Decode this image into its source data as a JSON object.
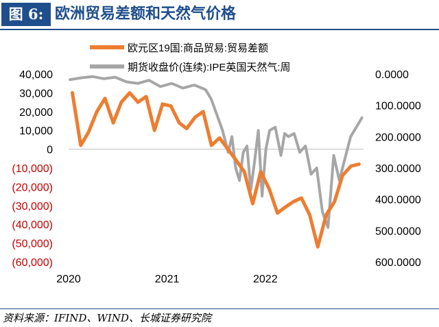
{
  "figure": {
    "label": "图 6:",
    "title": "欧洲贸易差额和天然气价格",
    "source": "资料来源：IFIND、WIND、长城证券研究院"
  },
  "colors": {
    "header": "#1f4e8c",
    "series_trade": "#ed7d31",
    "series_gas": "#a6a6a6",
    "negative_tick": "#c00000"
  },
  "chart_data": {
    "type": "line",
    "x_ticks": [
      "2020",
      "2021",
      "2022"
    ],
    "legend_position": "top",
    "grid": false,
    "y_left": {
      "ylim": [
        -60000,
        40000
      ],
      "ticks": [
        "40,000",
        "30,000",
        "20,000",
        "10,000",
        "0",
        "(10,000)",
        "(20,000)",
        "(30,000)",
        "(40,000)",
        "(50,000)",
        "(60,000)"
      ]
    },
    "y_right": {
      "ylim": [
        0,
        600
      ],
      "inverted": true,
      "ticks": [
        "0.0000",
        "100.0000",
        "200.0000",
        "300.0000",
        "400.0000",
        "500.0000",
        "600.0000"
      ]
    },
    "series": [
      {
        "name": "欧元区19国:商品贸易:贸易差额",
        "axis": "left",
        "x": [
          "2020-01",
          "2020-02",
          "2020-03",
          "2020-04",
          "2020-05",
          "2020-06",
          "2020-07",
          "2020-08",
          "2020-09",
          "2020-10",
          "2020-11",
          "2020-12",
          "2021-01",
          "2021-02",
          "2021-03",
          "2021-04",
          "2021-05",
          "2021-06",
          "2021-07",
          "2021-08",
          "2021-09",
          "2021-10",
          "2021-11",
          "2021-12",
          "2022-01",
          "2022-02",
          "2022-03",
          "2022-04",
          "2022-05",
          "2022-06",
          "2022-07",
          "2022-08",
          "2022-09",
          "2022-10",
          "2022-11",
          "2022-12"
        ],
        "values": [
          30000,
          2000,
          9000,
          20000,
          27000,
          14000,
          25000,
          30000,
          25000,
          28000,
          10000,
          24000,
          23000,
          14000,
          11000,
          17000,
          20000,
          2000,
          6000,
          0,
          -6000,
          -12000,
          -29000,
          -12000,
          -21000,
          -34000,
          -31000,
          -28000,
          -26000,
          -35000,
          -52000,
          -35000,
          -28000,
          -14000,
          -9000,
          -8000
        ]
      },
      {
        "name": "期货收盘价(连续):IPE英国天然气:周",
        "axis": "right",
        "x": [
          "2020-01-06",
          "2020-02-17",
          "2020-03-30",
          "2020-05-11",
          "2020-06-22",
          "2020-08-03",
          "2020-09-14",
          "2020-10-26",
          "2020-12-07",
          "2021-01-18",
          "2021-03-01",
          "2021-04-12",
          "2021-05-24",
          "2021-06-14",
          "2021-07-05",
          "2021-07-26",
          "2021-08-16",
          "2021-08-30",
          "2021-09-13",
          "2021-09-27",
          "2021-10-11",
          "2021-10-25",
          "2021-11-08",
          "2021-11-22",
          "2021-12-06",
          "2021-12-20",
          "2022-01-03",
          "2022-01-17",
          "2022-02-07",
          "2022-02-28",
          "2022-03-14",
          "2022-03-28",
          "2022-04-18",
          "2022-05-09",
          "2022-05-30",
          "2022-06-20",
          "2022-07-11",
          "2022-08-01",
          "2022-08-22",
          "2022-09-12",
          "2022-10-03",
          "2022-10-24",
          "2022-11-14",
          "2022-12-05",
          "2022-12-26"
        ],
        "values": [
          18,
          12,
          8,
          15,
          10,
          25,
          30,
          20,
          40,
          30,
          45,
          35,
          50,
          80,
          130,
          180,
          250,
          200,
          300,
          340,
          250,
          230,
          370,
          280,
          180,
          390,
          240,
          180,
          170,
          260,
          190,
          200,
          190,
          250,
          230,
          320,
          300,
          440,
          490,
          260,
          340,
          270,
          200,
          170,
          140
        ]
      }
    ]
  }
}
